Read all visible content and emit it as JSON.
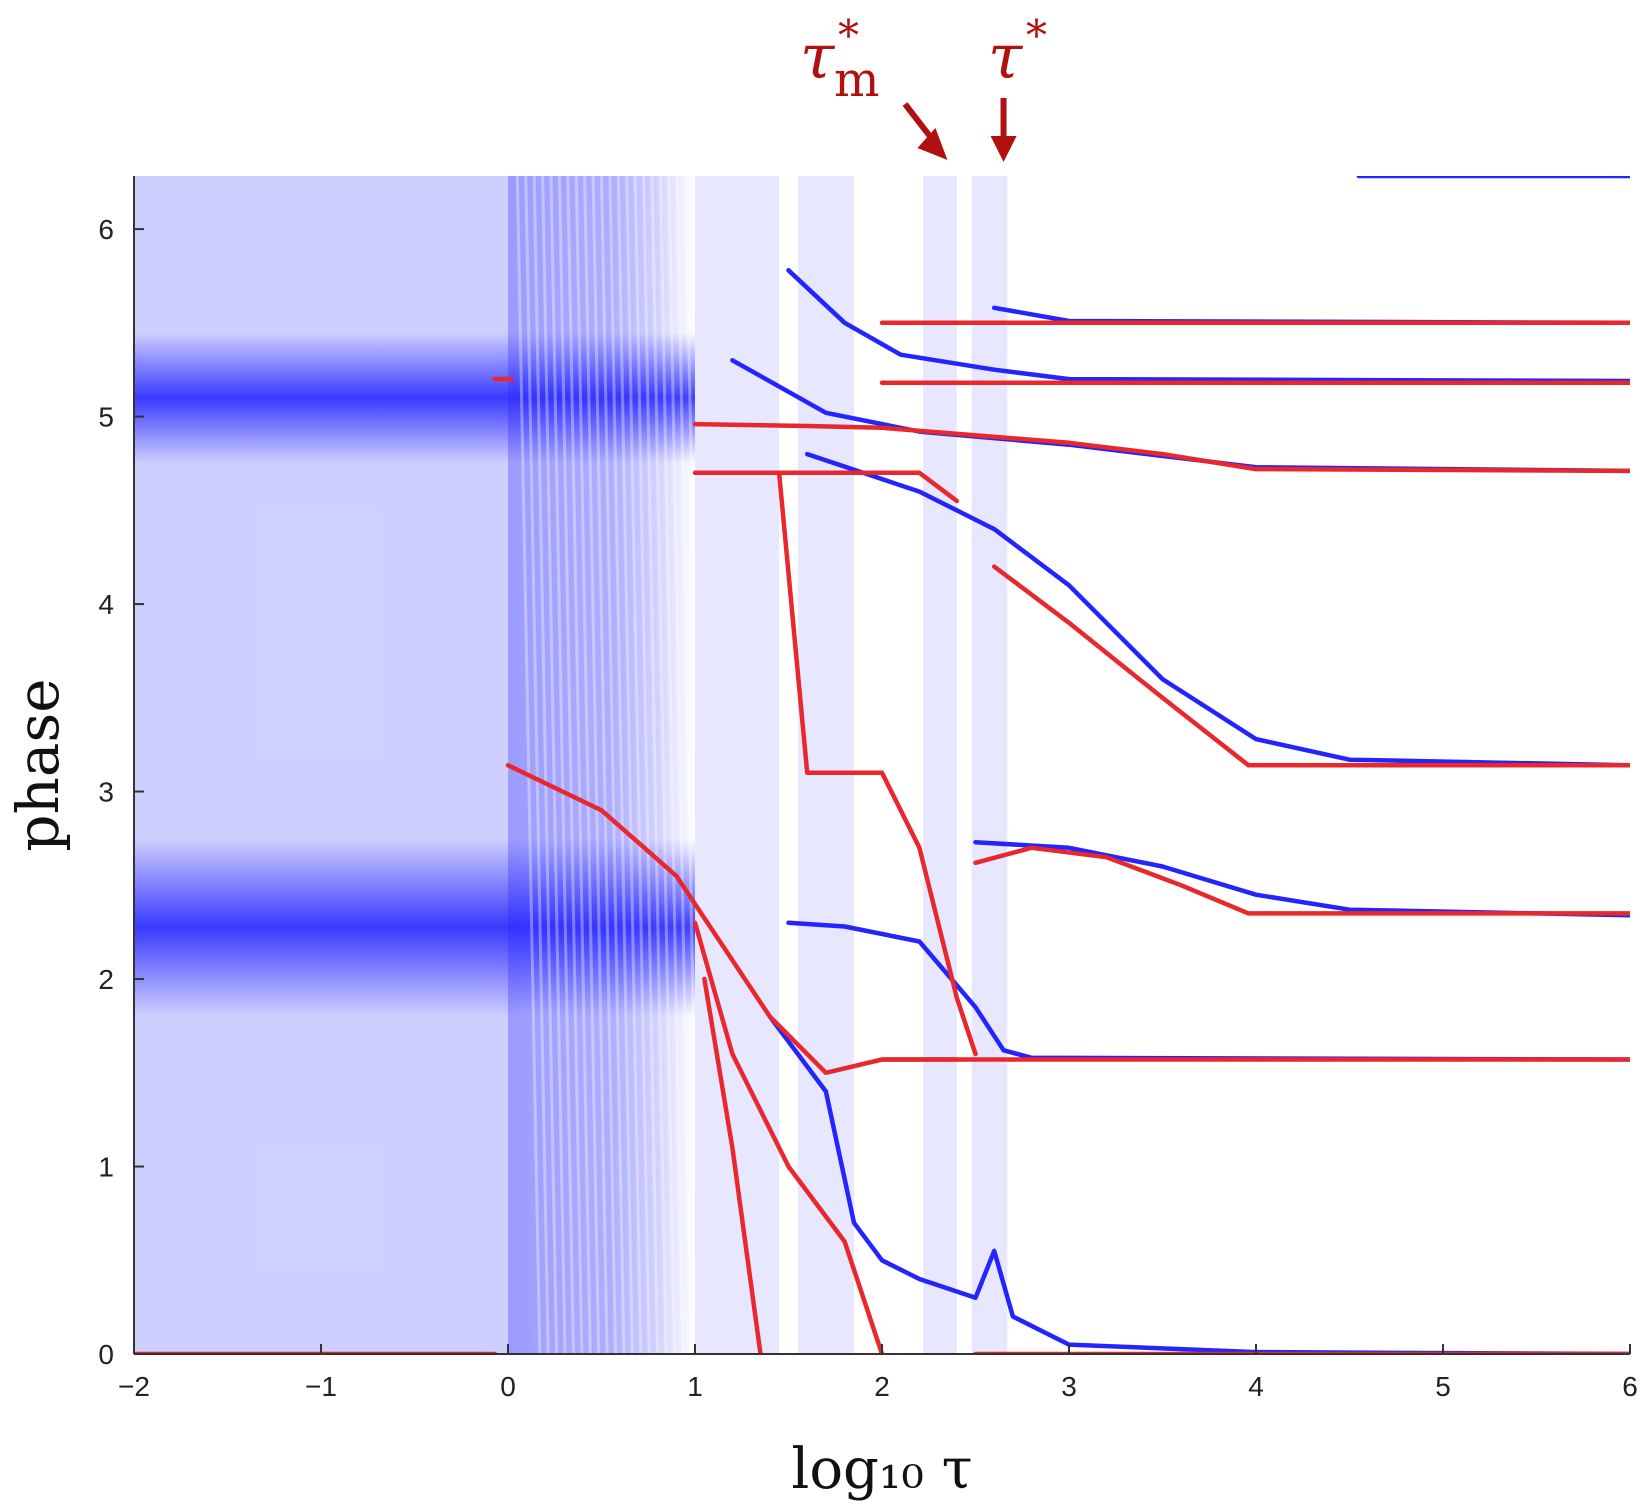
{
  "chart_data": {
    "type": "scatter",
    "xlabel": "log₁₀ τ",
    "ylabel": "phase",
    "xlim": [
      -2,
      6
    ],
    "ylim": [
      0,
      6.2832
    ],
    "x_ticks": [
      "−2",
      "−1",
      "0",
      "1",
      "2",
      "3",
      "4",
      "5",
      "6"
    ],
    "y_ticks": [
      "0",
      "1",
      "2",
      "3",
      "4",
      "5",
      "6"
    ],
    "x_tick_values": [
      -2,
      -1,
      0,
      1,
      2,
      3,
      4,
      5,
      6
    ],
    "y_tick_values": [
      0,
      1,
      2,
      3,
      4,
      5,
      6
    ],
    "grid": false,
    "colors": {
      "blue": "#2424ff",
      "red": "#e8282c",
      "annotation": "#b01010"
    },
    "annotations": [
      {
        "text": "τ",
        "sub": "m",
        "sup": "*",
        "x": 2.35
      },
      {
        "text": "τ",
        "sup": "*",
        "x": 2.65
      }
    ],
    "series": [
      {
        "color": "blue",
        "curves": [
          [
            [
              4.55,
              6.2832
            ],
            [
              6.0,
              6.2832
            ]
          ],
          [
            [
              2.6,
              5.58
            ],
            [
              3.0,
              5.51
            ],
            [
              6.0,
              5.5
            ]
          ],
          [
            [
              1.5,
              5.78
            ],
            [
              1.8,
              5.5
            ],
            [
              2.1,
              5.33
            ],
            [
              2.6,
              5.25
            ],
            [
              3.0,
              5.2
            ],
            [
              6.0,
              5.19
            ]
          ],
          [
            [
              1.2,
              5.3
            ],
            [
              1.7,
              5.02
            ],
            [
              2.2,
              4.92
            ],
            [
              3.0,
              4.85
            ],
            [
              4.0,
              4.73
            ],
            [
              6.0,
              4.71
            ]
          ],
          [
            [
              1.6,
              4.8
            ],
            [
              2.2,
              4.6
            ],
            [
              2.6,
              4.4
            ],
            [
              3.0,
              4.1
            ],
            [
              3.5,
              3.6
            ],
            [
              4.0,
              3.28
            ],
            [
              4.5,
              3.17
            ],
            [
              6.0,
              3.14
            ]
          ],
          [
            [
              2.5,
              2.73
            ],
            [
              3.0,
              2.7
            ],
            [
              3.5,
              2.6
            ],
            [
              4.0,
              2.45
            ],
            [
              4.5,
              2.37
            ],
            [
              6.0,
              2.34
            ]
          ],
          [
            [
              1.5,
              2.3
            ],
            [
              1.8,
              2.28
            ],
            [
              2.2,
              2.2
            ],
            [
              2.5,
              1.85
            ],
            [
              2.65,
              1.62
            ],
            [
              2.8,
              1.58
            ],
            [
              6.0,
              1.571
            ]
          ],
          [
            [
              1.4,
              1.8
            ],
            [
              1.7,
              1.4
            ],
            [
              1.85,
              0.7
            ],
            [
              2.0,
              0.5
            ],
            [
              2.2,
              0.4
            ],
            [
              2.5,
              0.3
            ],
            [
              2.6,
              0.55
            ],
            [
              2.7,
              0.2
            ],
            [
              3.0,
              0.05
            ],
            [
              4.0,
              0.01
            ],
            [
              6.0,
              0.0
            ]
          ]
        ]
      },
      {
        "color": "red",
        "curves": [
          [
            [
              -2.0,
              0.0
            ],
            [
              -0.07,
              0.0
            ]
          ],
          [
            [
              -0.07,
              5.2
            ],
            [
              0.02,
              5.2
            ]
          ],
          [
            [
              2.0,
              5.5
            ],
            [
              6.0,
              5.5
            ]
          ],
          [
            [
              2.0,
              5.18
            ],
            [
              6.0,
              5.18
            ]
          ],
          [
            [
              1.0,
              4.96
            ],
            [
              1.6,
              4.95
            ],
            [
              2.0,
              4.94
            ],
            [
              3.0,
              4.86
            ],
            [
              3.5,
              4.8
            ],
            [
              4.0,
              4.72
            ],
            [
              6.0,
              4.71
            ]
          ],
          [
            [
              2.6,
              4.2
            ],
            [
              3.0,
              3.9
            ],
            [
              3.5,
              3.5
            ],
            [
              3.96,
              3.14
            ],
            [
              6.0,
              3.14
            ]
          ],
          [
            [
              2.5,
              2.62
            ],
            [
              2.8,
              2.7
            ],
            [
              3.2,
              2.65
            ],
            [
              3.6,
              2.5
            ],
            [
              3.96,
              2.35
            ],
            [
              6.0,
              2.35
            ]
          ],
          [
            [
              2.0,
              1.571
            ],
            [
              6.0,
              1.571
            ]
          ],
          [
            [
              2.5,
              0.0
            ],
            [
              6.0,
              0.0
            ]
          ],
          [
            [
              0.0,
              3.14
            ],
            [
              0.5,
              2.9
            ],
            [
              0.9,
              2.55
            ],
            [
              1.2,
              2.1
            ],
            [
              1.4,
              1.8
            ],
            [
              1.7,
              1.5
            ],
            [
              2.0,
              1.571
            ],
            [
              2.4,
              1.571
            ]
          ],
          [
            [
              1.0,
              2.3
            ],
            [
              1.2,
              1.6
            ],
            [
              1.5,
              1.0
            ],
            [
              1.8,
              0.6
            ],
            [
              2.0,
              0.0
            ]
          ],
          [
            [
              1.05,
              2.0
            ],
            [
              1.2,
              1.1
            ],
            [
              1.35,
              0.0
            ]
          ],
          [
            [
              1.45,
              4.7
            ],
            [
              1.6,
              3.1
            ],
            [
              2.0,
              3.1
            ],
            [
              2.2,
              2.7
            ],
            [
              2.4,
              1.9
            ],
            [
              2.5,
              1.6
            ]
          ],
          [
            [
              1.0,
              4.7
            ],
            [
              1.3,
              4.7
            ],
            [
              1.55,
              4.7
            ],
            [
              2.2,
              4.7
            ],
            [
              2.4,
              4.55
            ]
          ]
        ]
      }
    ]
  }
}
